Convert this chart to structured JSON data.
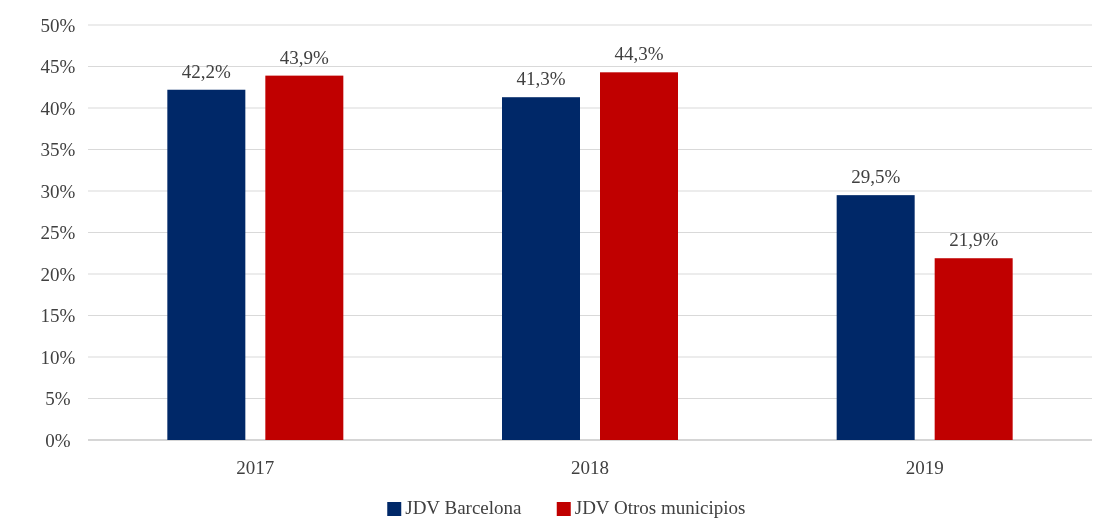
{
  "chart_data": {
    "type": "bar",
    "categories": [
      "2017",
      "2018",
      "2019"
    ],
    "series": [
      {
        "name": "JDV Barcelona",
        "color": "#002868",
        "values": [
          42.2,
          41.3,
          29.5
        ],
        "value_labels": [
          "42,2%",
          "41,3%",
          "29,5%"
        ]
      },
      {
        "name": "JDV Otros municipios",
        "color": "#c00000",
        "values": [
          43.9,
          44.3,
          21.9
        ],
        "value_labels": [
          "43,9%",
          "44,3%",
          "21,9%"
        ]
      }
    ],
    "ylim": [
      0,
      50
    ],
    "yticks": [
      {
        "value": 0,
        "label": "0%"
      },
      {
        "value": 5,
        "label": "5%"
      },
      {
        "value": 10,
        "label": "10%"
      },
      {
        "value": 15,
        "label": "15%"
      },
      {
        "value": 20,
        "label": "20%"
      },
      {
        "value": 25,
        "label": "25%"
      },
      {
        "value": 30,
        "label": "30%"
      },
      {
        "value": 35,
        "label": "35%"
      },
      {
        "value": 40,
        "label": "40%"
      },
      {
        "value": 45,
        "label": "45%"
      },
      {
        "value": 50,
        "label": "50%"
      }
    ],
    "grid": "y",
    "legend": "bottom"
  }
}
